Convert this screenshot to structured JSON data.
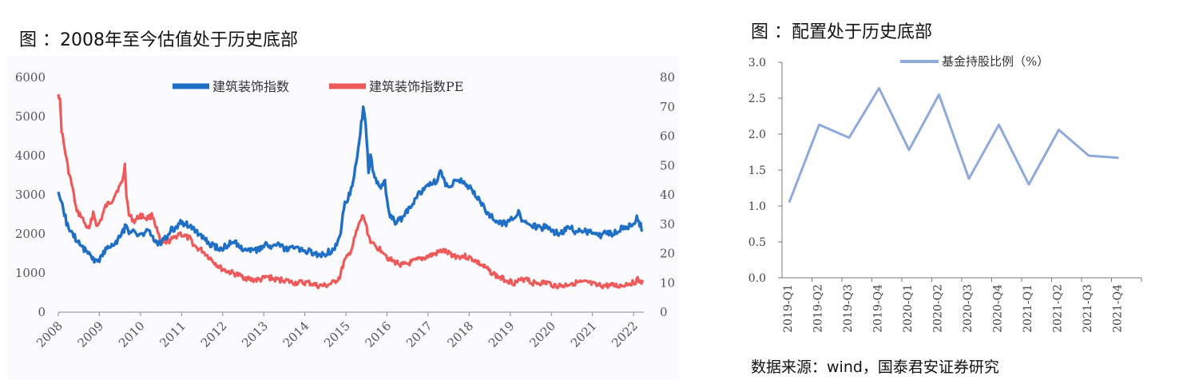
{
  "left_caption": "图 ：2008年至今估值处于历史底部",
  "right_caption": "图 ：配置处于历史底部",
  "source_note": "数据来源：wind，国泰君安证券研究",
  "chart_data": [
    {
      "type": "line",
      "title": "2008年至今估值处于历史底部",
      "x_range": [
        2008.0,
        2022.25
      ],
      "x_ticks": [
        "2008",
        "2009",
        "2010",
        "2011",
        "2012",
        "2013",
        "2014",
        "2015",
        "2016",
        "2017",
        "2018",
        "2019",
        "2020",
        "2021",
        "2022"
      ],
      "y_left": {
        "range": [
          0,
          6000
        ],
        "ticks": [
          "0",
          "1000",
          "2000",
          "3000",
          "4000",
          "5000",
          "6000"
        ]
      },
      "y_right": {
        "range": [
          0,
          80
        ],
        "ticks": [
          "0",
          "10",
          "20",
          "30",
          "40",
          "50",
          "60",
          "70",
          "80"
        ]
      },
      "legend": [
        "建筑装饰指数",
        "建筑装饰指数PE"
      ],
      "colors": {
        "index": "#1F6FC5",
        "pe": "#EE5A5A"
      },
      "series": [
        {
          "name": "建筑装饰指数",
          "axis": "left",
          "points": [
            [
              2008.0,
              3000
            ],
            [
              2008.05,
              2800
            ],
            [
              2008.12,
              2650
            ],
            [
              2008.2,
              2300
            ],
            [
              2008.3,
              2050
            ],
            [
              2008.45,
              1850
            ],
            [
              2008.6,
              1650
            ],
            [
              2008.75,
              1500
            ],
            [
              2008.85,
              1350
            ],
            [
              2008.95,
              1280
            ],
            [
              2009.05,
              1450
            ],
            [
              2009.15,
              1600
            ],
            [
              2009.3,
              1700
            ],
            [
              2009.45,
              1850
            ],
            [
              2009.6,
              2100
            ],
            [
              2009.65,
              2300
            ],
            [
              2009.72,
              2000
            ],
            [
              2009.85,
              2050
            ],
            [
              2010.0,
              1950
            ],
            [
              2010.15,
              2100
            ],
            [
              2010.3,
              1900
            ],
            [
              2010.45,
              1750
            ],
            [
              2010.6,
              1900
            ],
            [
              2010.75,
              2100
            ],
            [
              2010.9,
              2200
            ],
            [
              2011.0,
              2300
            ],
            [
              2011.1,
              2250
            ],
            [
              2011.25,
              2200
            ],
            [
              2011.4,
              2000
            ],
            [
              2011.55,
              1850
            ],
            [
              2011.75,
              1700
            ],
            [
              2011.95,
              1600
            ],
            [
              2012.1,
              1700
            ],
            [
              2012.25,
              1800
            ],
            [
              2012.4,
              1700
            ],
            [
              2012.55,
              1600
            ],
            [
              2012.75,
              1550
            ],
            [
              2012.9,
              1600
            ],
            [
              2013.05,
              1750
            ],
            [
              2013.2,
              1650
            ],
            [
              2013.35,
              1700
            ],
            [
              2013.55,
              1600
            ],
            [
              2013.75,
              1650
            ],
            [
              2013.95,
              1550
            ],
            [
              2014.1,
              1550
            ],
            [
              2014.3,
              1450
            ],
            [
              2014.5,
              1500
            ],
            [
              2014.7,
              1600
            ],
            [
              2014.85,
              1900
            ],
            [
              2014.95,
              2700
            ],
            [
              2015.05,
              2900
            ],
            [
              2015.15,
              3200
            ],
            [
              2015.25,
              3800
            ],
            [
              2015.35,
              4600
            ],
            [
              2015.42,
              5200
            ],
            [
              2015.48,
              4800
            ],
            [
              2015.55,
              3600
            ],
            [
              2015.6,
              4000
            ],
            [
              2015.7,
              3400
            ],
            [
              2015.85,
              3200
            ],
            [
              2015.95,
              3300
            ],
            [
              2016.05,
              2500
            ],
            [
              2016.2,
              2300
            ],
            [
              2016.35,
              2400
            ],
            [
              2016.5,
              2600
            ],
            [
              2016.7,
              2900
            ],
            [
              2016.9,
              3200
            ],
            [
              2017.05,
              3300
            ],
            [
              2017.2,
              3350
            ],
            [
              2017.3,
              3600
            ],
            [
              2017.4,
              3300
            ],
            [
              2017.55,
              3250
            ],
            [
              2017.7,
              3400
            ],
            [
              2017.85,
              3300
            ],
            [
              2018.0,
              3200
            ],
            [
              2018.15,
              3000
            ],
            [
              2018.3,
              2800
            ],
            [
              2018.45,
              2500
            ],
            [
              2018.6,
              2400
            ],
            [
              2018.75,
              2300
            ],
            [
              2018.9,
              2250
            ],
            [
              2019.05,
              2400
            ],
            [
              2019.2,
              2600
            ],
            [
              2019.3,
              2300
            ],
            [
              2019.45,
              2250
            ],
            [
              2019.6,
              2200
            ],
            [
              2019.75,
              2150
            ],
            [
              2019.9,
              2200
            ],
            [
              2020.05,
              2050
            ],
            [
              2020.2,
              2000
            ],
            [
              2020.35,
              2100
            ],
            [
              2020.5,
              2150
            ],
            [
              2020.6,
              2000
            ],
            [
              2020.75,
              2100
            ],
            [
              2020.9,
              2050
            ],
            [
              2021.05,
              2000
            ],
            [
              2021.2,
              1950
            ],
            [
              2021.35,
              2050
            ],
            [
              2021.5,
              2000
            ],
            [
              2021.6,
              2050
            ],
            [
              2021.7,
              2150
            ],
            [
              2021.8,
              2100
            ],
            [
              2021.9,
              2200
            ],
            [
              2022.0,
              2300
            ],
            [
              2022.08,
              2400
            ],
            [
              2022.15,
              2250
            ],
            [
              2022.22,
              2100
            ]
          ]
        },
        {
          "name": "建筑装饰指数PE",
          "axis": "right",
          "points": [
            [
              2008.0,
              75
            ],
            [
              2008.04,
              72
            ],
            [
              2008.08,
              62
            ],
            [
              2008.15,
              56
            ],
            [
              2008.25,
              48
            ],
            [
              2008.35,
              42
            ],
            [
              2008.45,
              34
            ],
            [
              2008.55,
              33
            ],
            [
              2008.65,
              30
            ],
            [
              2008.75,
              28
            ],
            [
              2008.85,
              34
            ],
            [
              2008.95,
              29
            ],
            [
              2009.05,
              32
            ],
            [
              2009.15,
              36
            ],
            [
              2009.3,
              38
            ],
            [
              2009.45,
              42
            ],
            [
              2009.55,
              44
            ],
            [
              2009.62,
              50
            ],
            [
              2009.66,
              40
            ],
            [
              2009.72,
              33
            ],
            [
              2009.85,
              31
            ],
            [
              2010.0,
              33
            ],
            [
              2010.15,
              32
            ],
            [
              2010.3,
              33
            ],
            [
              2010.42,
              27
            ],
            [
              2010.5,
              23
            ],
            [
              2010.65,
              24
            ],
            [
              2010.8,
              25
            ],
            [
              2010.95,
              27
            ],
            [
              2011.05,
              26
            ],
            [
              2011.2,
              25
            ],
            [
              2011.35,
              22
            ],
            [
              2011.5,
              21
            ],
            [
              2011.65,
              19
            ],
            [
              2011.8,
              17
            ],
            [
              2011.95,
              15
            ],
            [
              2012.1,
              14
            ],
            [
              2012.3,
              13
            ],
            [
              2012.5,
              12
            ],
            [
              2012.7,
              11
            ],
            [
              2012.9,
              11
            ],
            [
              2013.1,
              12
            ],
            [
              2013.3,
              11
            ],
            [
              2013.5,
              11
            ],
            [
              2013.7,
              10
            ],
            [
              2013.9,
              10
            ],
            [
              2014.1,
              10
            ],
            [
              2014.3,
              9
            ],
            [
              2014.5,
              9
            ],
            [
              2014.7,
              10
            ],
            [
              2014.85,
              12
            ],
            [
              2014.95,
              17
            ],
            [
              2015.05,
              19
            ],
            [
              2015.15,
              22
            ],
            [
              2015.25,
              27
            ],
            [
              2015.35,
              31
            ],
            [
              2015.42,
              33
            ],
            [
              2015.48,
              30
            ],
            [
              2015.55,
              26
            ],
            [
              2015.65,
              23
            ],
            [
              2015.75,
              22
            ],
            [
              2015.9,
              21
            ],
            [
              2016.05,
              18
            ],
            [
              2016.2,
              17
            ],
            [
              2016.4,
              16
            ],
            [
              2016.6,
              17
            ],
            [
              2016.8,
              18
            ],
            [
              2017.0,
              19
            ],
            [
              2017.2,
              20
            ],
            [
              2017.35,
              21
            ],
            [
              2017.5,
              20
            ],
            [
              2017.7,
              19
            ],
            [
              2017.9,
              19
            ],
            [
              2018.1,
              18
            ],
            [
              2018.3,
              16
            ],
            [
              2018.5,
              14
            ],
            [
              2018.7,
              12
            ],
            [
              2018.9,
              11
            ],
            [
              2019.1,
              10
            ],
            [
              2019.3,
              11
            ],
            [
              2019.4,
              12
            ],
            [
              2019.5,
              10
            ],
            [
              2019.7,
              10
            ],
            [
              2019.9,
              10
            ],
            [
              2020.1,
              9
            ],
            [
              2020.3,
              9
            ],
            [
              2020.5,
              10
            ],
            [
              2020.7,
              10
            ],
            [
              2020.9,
              10
            ],
            [
              2021.1,
              9
            ],
            [
              2021.3,
              9
            ],
            [
              2021.5,
              9
            ],
            [
              2021.7,
              9
            ],
            [
              2021.9,
              10
            ],
            [
              2022.0,
              10
            ],
            [
              2022.1,
              11
            ],
            [
              2022.18,
              10
            ],
            [
              2022.22,
              11
            ]
          ]
        }
      ]
    },
    {
      "type": "line",
      "title": "配置处于历史底部",
      "categories": [
        "2019-Q1",
        "2019-Q2",
        "2019-Q3",
        "2019-Q4",
        "2020-Q1",
        "2020-Q2",
        "2020-Q3",
        "2020-Q4",
        "2021-Q1",
        "2021-Q2",
        "2021-Q3",
        "2021-Q4"
      ],
      "y_axis": {
        "range": [
          0,
          3.0
        ],
        "ticks": [
          "0.0",
          "0.5",
          "1.0",
          "1.5",
          "2.0",
          "2.5",
          "3.0"
        ]
      },
      "legend": [
        "基金持股比例（%）"
      ],
      "color": "#8FA9DA",
      "series": [
        {
          "name": "基金持股比例（%）",
          "values": [
            1.05,
            2.13,
            1.95,
            2.64,
            1.78,
            2.55,
            1.38,
            2.13,
            1.3,
            2.06,
            1.7,
            1.67
          ]
        }
      ]
    }
  ]
}
